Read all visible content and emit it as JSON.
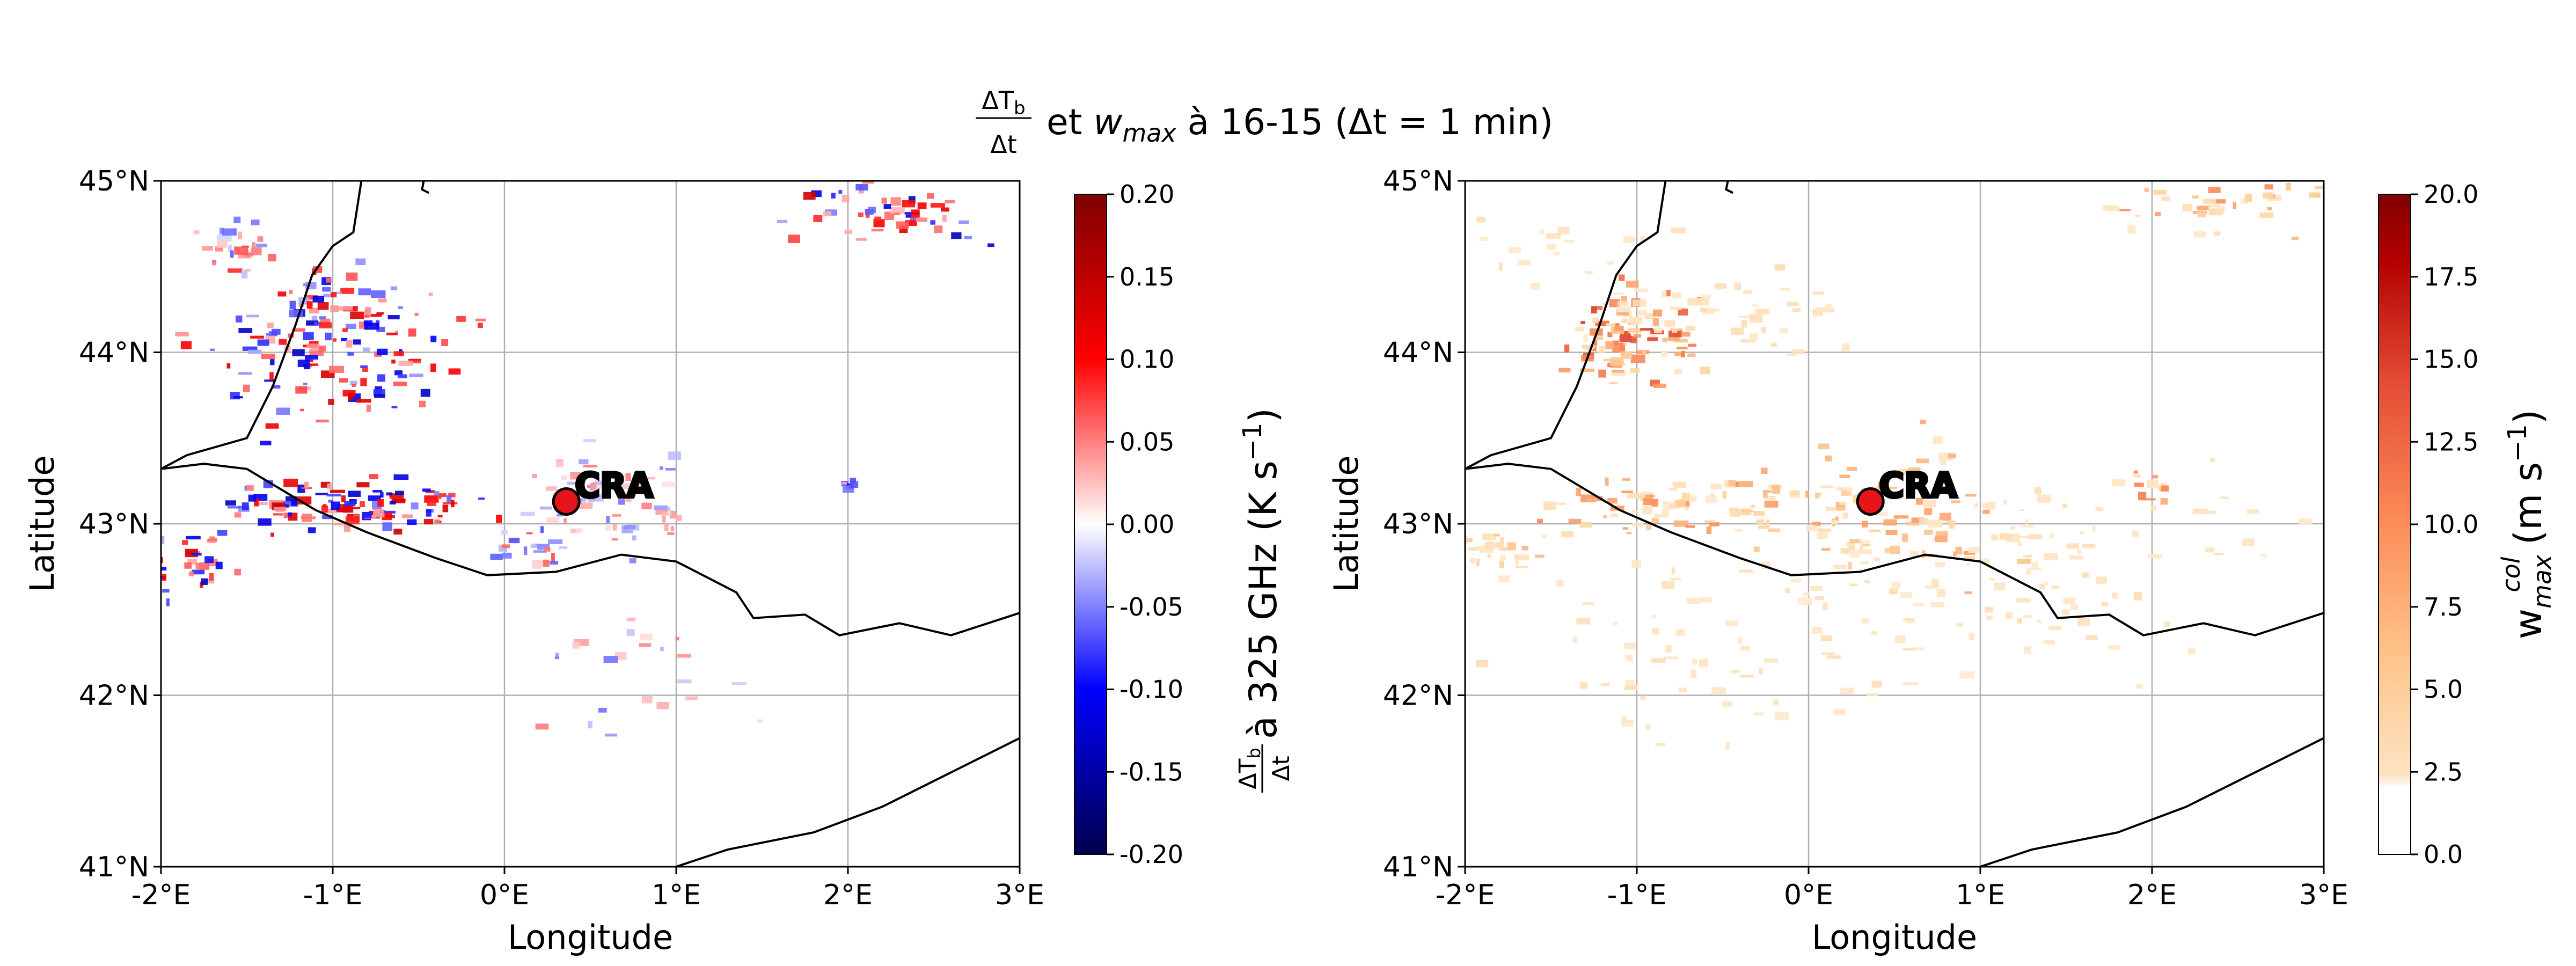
{
  "figure": {
    "title_prefix": "ΔTb/Δt",
    "title_rest": " et w",
    "title_sub": "max",
    "title_tail": " à 16-15 (Δt = 1 min)"
  },
  "chart_data": [
    {
      "type": "heatmap",
      "title": "",
      "xlabel": "Longitude",
      "ylabel": "Latitude",
      "xlim": [
        -2,
        3
      ],
      "ylim": [
        41,
        45
      ],
      "x_ticks": [
        "-2°E",
        "-1°E",
        "0°E",
        "1°E",
        "2°E",
        "3°E"
      ],
      "y_ticks": [
        "41°N",
        "42°N",
        "43°N",
        "44°N",
        "45°N"
      ],
      "grid": true,
      "colorbar": {
        "label_main": " à 325 GHz (K s",
        "label_frac": "ΔTb/Δt",
        "label_sup": "−1",
        "label_end": ")",
        "range": [
          -0.2,
          0.2
        ],
        "ticks": [
          "-0.20",
          "-0.15",
          "-0.10",
          "-0.05",
          "0.00",
          "0.05",
          "0.10",
          "0.15",
          "0.20"
        ],
        "colormap": "seismic",
        "colors": [
          "#00004c",
          "#0000ff",
          "#ffffff",
          "#ff0000",
          "#7f0000"
        ]
      },
      "marker": {
        "label": "CRA",
        "lon": 0.36,
        "lat": 43.13,
        "color": "#e8141b"
      },
      "features": [
        {
          "lon": -1.0,
          "lat": 44.05,
          "spread_lon": 0.35,
          "spread_lat": 0.22,
          "n": 160,
          "intensity": 0.12
        },
        {
          "lon": -1.55,
          "lat": 44.6,
          "spread_lon": 0.12,
          "spread_lat": 0.08,
          "n": 25,
          "intensity": 0.06
        },
        {
          "lon": -0.95,
          "lat": 43.1,
          "spread_lon": 0.4,
          "spread_lat": 0.07,
          "n": 110,
          "intensity": 0.13
        },
        {
          "lon": -1.85,
          "lat": 42.78,
          "spread_lon": 0.15,
          "spread_lat": 0.1,
          "n": 40,
          "intensity": 0.12
        },
        {
          "lon": 0.6,
          "lat": 43.15,
          "spread_lon": 0.25,
          "spread_lat": 0.15,
          "n": 70,
          "intensity": 0.05
        },
        {
          "lon": 0.2,
          "lat": 42.85,
          "spread_lon": 0.15,
          "spread_lat": 0.06,
          "n": 20,
          "intensity": 0.07
        },
        {
          "lon": 2.3,
          "lat": 44.8,
          "spread_lon": 0.35,
          "spread_lat": 0.08,
          "n": 50,
          "intensity": 0.12
        },
        {
          "lon": 2.0,
          "lat": 43.2,
          "spread_lon": 0.05,
          "spread_lat": 0.03,
          "n": 6,
          "intensity": 0.1
        },
        {
          "lon": 0.7,
          "lat": 42.2,
          "spread_lon": 0.35,
          "spread_lat": 0.2,
          "n": 25,
          "intensity": 0.05
        }
      ]
    },
    {
      "type": "heatmap",
      "title": "",
      "xlabel": "Longitude",
      "ylabel": "Latitude",
      "xlim": [
        -2,
        3
      ],
      "ylim": [
        41,
        45
      ],
      "x_ticks": [
        "-2°E",
        "-1°E",
        "0°E",
        "1°E",
        "2°E",
        "3°E"
      ],
      "y_ticks": [
        "41°N",
        "42°N",
        "43°N",
        "44°N",
        "45°N"
      ],
      "grid": true,
      "colorbar": {
        "label_main": "w",
        "label_sub": "max",
        "label_sup": "col",
        "label_units": "  (m s",
        "label_units_sup": "−1",
        "label_end": ")",
        "range": [
          0,
          20
        ],
        "ticks": [
          "0.0",
          "2.5",
          "5.0",
          "7.5",
          "10.0",
          "12.5",
          "15.0",
          "17.5",
          "20.0"
        ],
        "colormap": "OrRd",
        "colors": [
          "#ffffff",
          "#fdd49e",
          "#fc8d59",
          "#d7301f",
          "#7f0000"
        ]
      },
      "marker": {
        "label": "CRA",
        "lon": 0.36,
        "lat": 43.13,
        "color": "#e8141b"
      },
      "features": [
        {
          "lon": -1.0,
          "lat": 44.1,
          "spread_lon": 0.18,
          "spread_lat": 0.15,
          "n": 90,
          "intensity": 14
        },
        {
          "lon": -0.55,
          "lat": 44.2,
          "spread_lon": 0.4,
          "spread_lat": 0.12,
          "n": 50,
          "intensity": 4
        },
        {
          "lon": -0.9,
          "lat": 43.1,
          "spread_lon": 0.35,
          "spread_lat": 0.08,
          "n": 70,
          "intensity": 10
        },
        {
          "lon": -1.8,
          "lat": 42.85,
          "spread_lon": 0.15,
          "spread_lat": 0.05,
          "n": 30,
          "intensity": 7
        },
        {
          "lon": 0.4,
          "lat": 43.05,
          "spread_lon": 0.4,
          "spread_lat": 0.2,
          "n": 110,
          "intensity": 9
        },
        {
          "lon": 1.6,
          "lat": 43.0,
          "spread_lon": 0.8,
          "spread_lat": 0.2,
          "n": 40,
          "intensity": 3
        },
        {
          "lon": 2.4,
          "lat": 44.85,
          "spread_lon": 0.35,
          "spread_lat": 0.08,
          "n": 40,
          "intensity": 10
        },
        {
          "lon": 2.0,
          "lat": 43.2,
          "spread_lon": 0.1,
          "spread_lat": 0.05,
          "n": 10,
          "intensity": 12
        },
        {
          "lon": -0.5,
          "lat": 42.3,
          "spread_lon": 0.6,
          "spread_lat": 0.3,
          "n": 70,
          "intensity": 3
        },
        {
          "lon": 1.2,
          "lat": 42.55,
          "spread_lon": 0.5,
          "spread_lat": 0.25,
          "n": 60,
          "intensity": 3
        },
        {
          "lon": -1.5,
          "lat": 44.6,
          "spread_lon": 0.3,
          "spread_lat": 0.1,
          "n": 20,
          "intensity": 3
        }
      ]
    }
  ]
}
